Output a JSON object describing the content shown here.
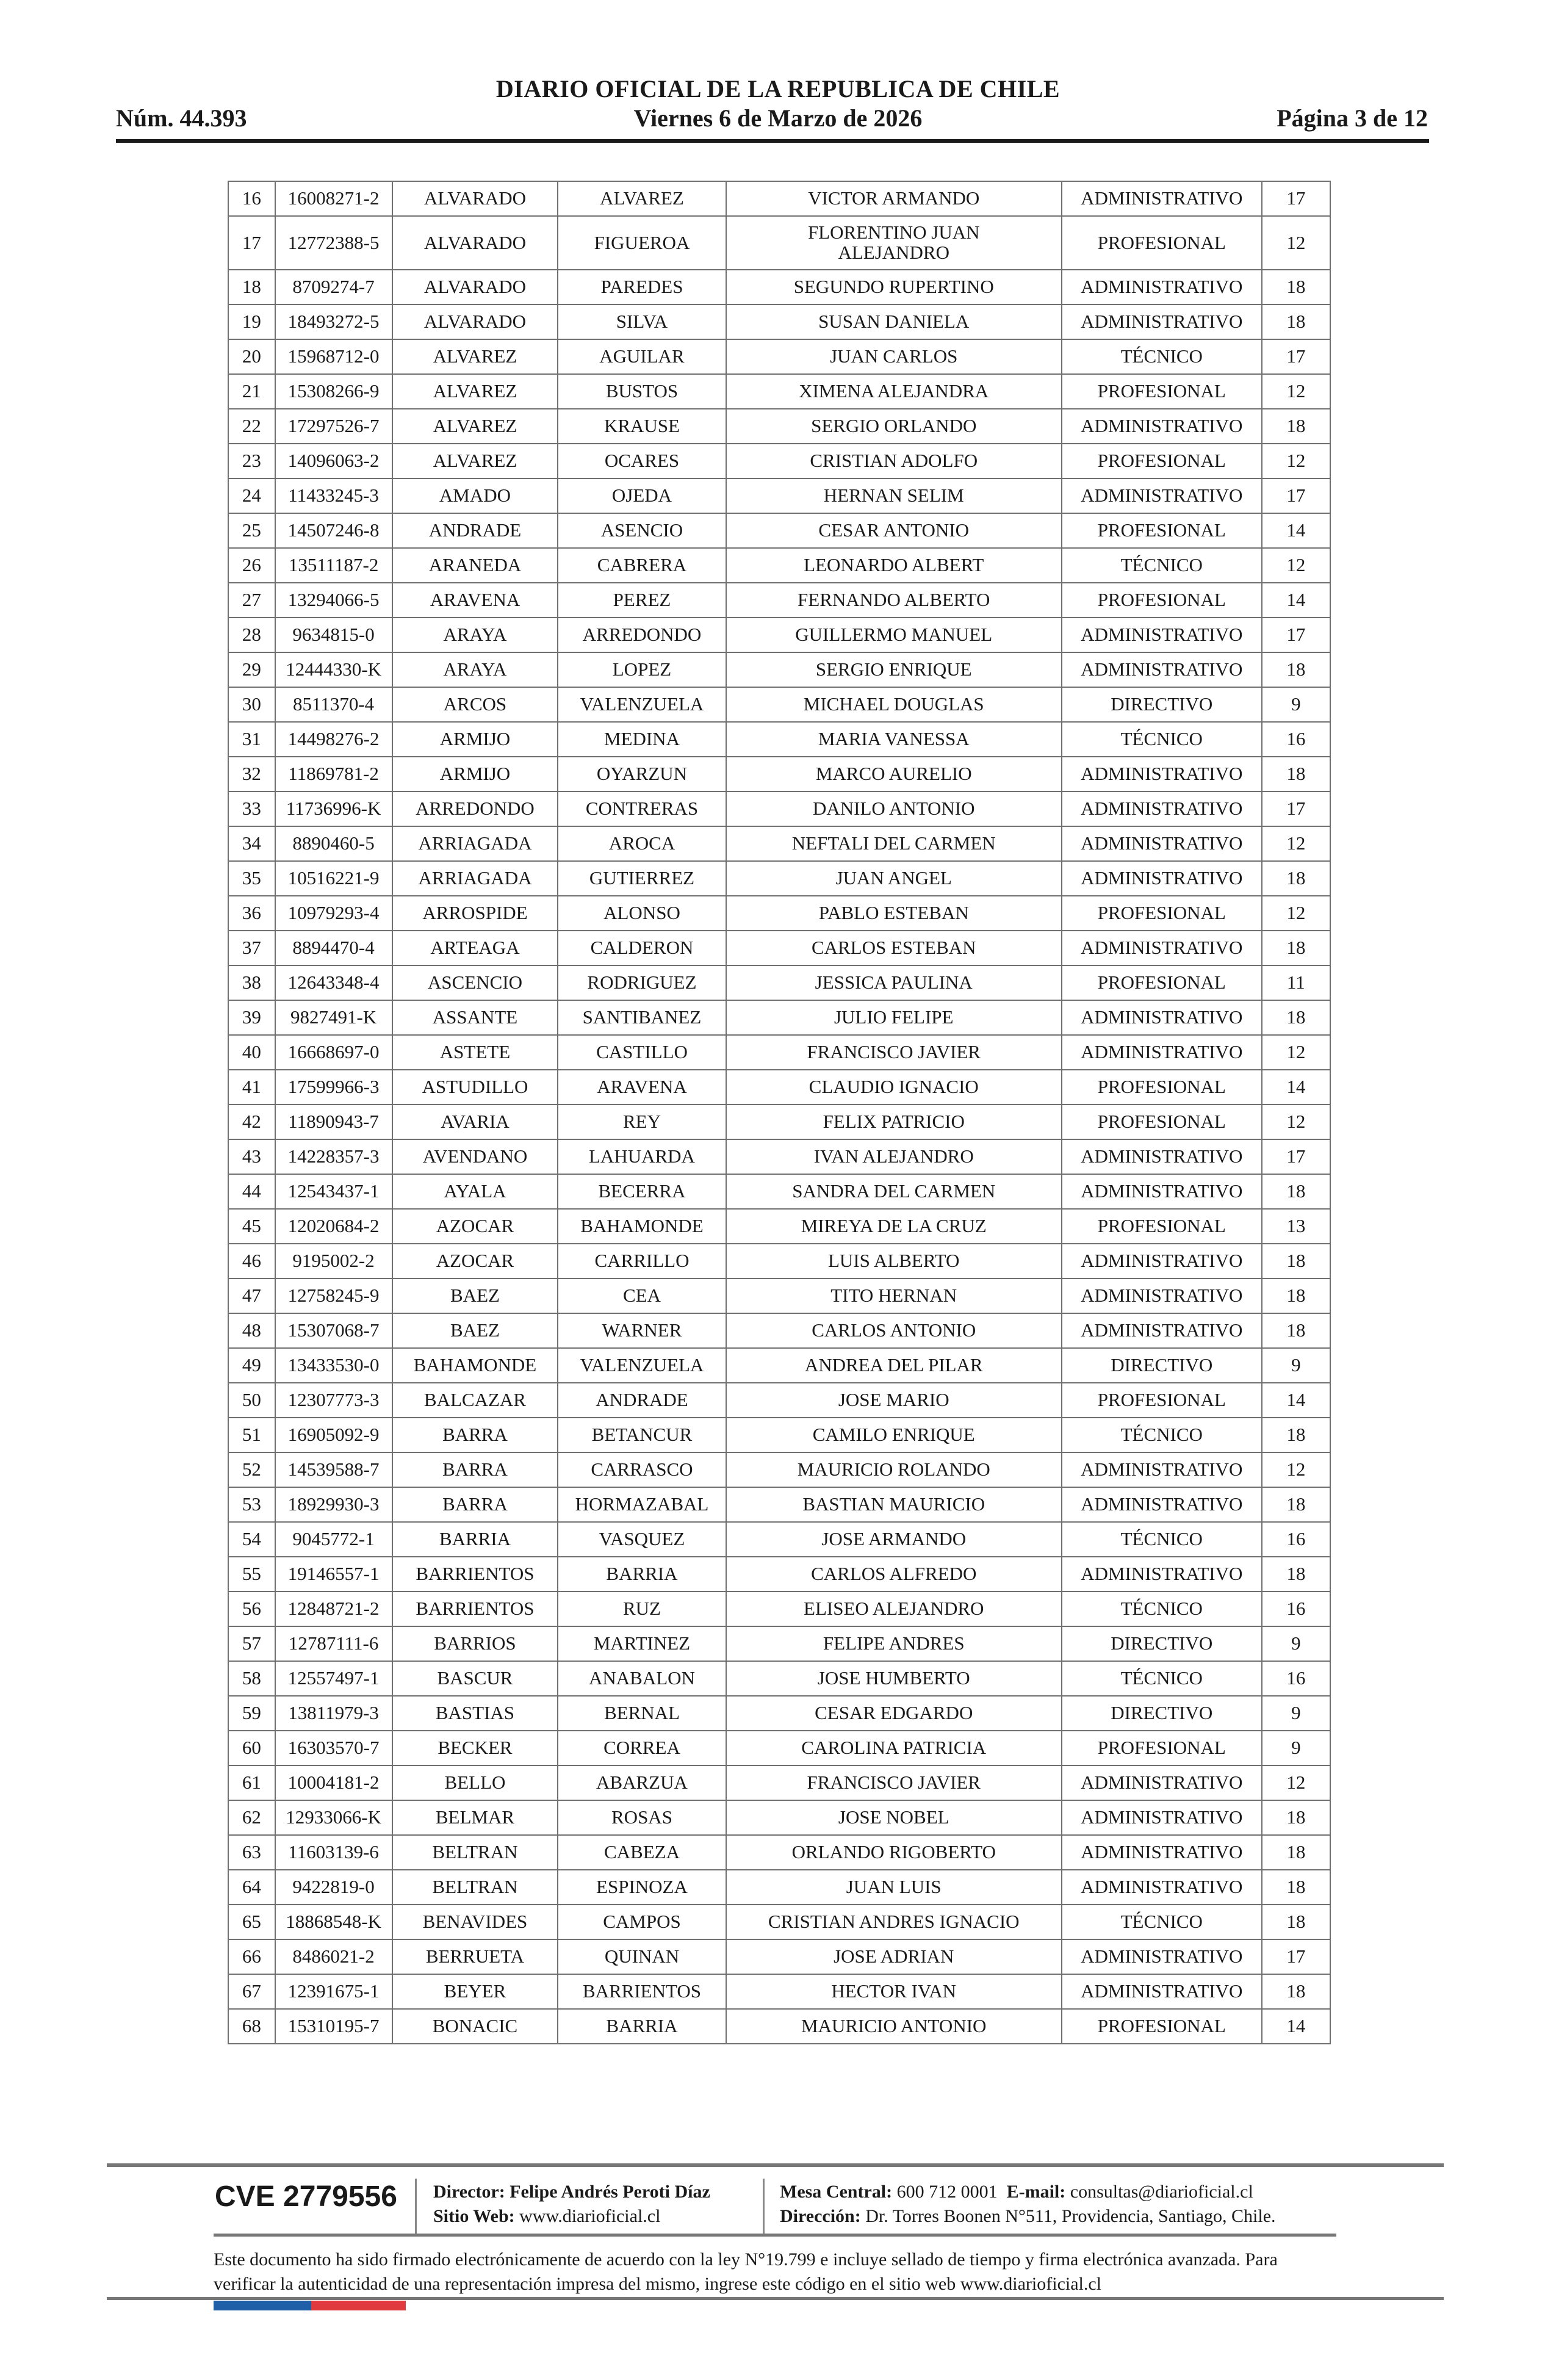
{
  "header": {
    "title": "DIARIO OFICIAL DE LA REPUBLICA DE CHILE",
    "number": "Núm. 44.393",
    "date": "Viernes 6 de Marzo de 2026",
    "page": "Página 3 de 12"
  },
  "table": {
    "rows": [
      [
        "16",
        "16008271-2",
        "ALVARADO",
        "ALVAREZ",
        "VICTOR ARMANDO",
        "ADMINISTRATIVO",
        "17"
      ],
      [
        "17",
        "12772388-5",
        "ALVARADO",
        "FIGUEROA",
        "FLORENTINO JUAN ALEJANDRO",
        "PROFESIONAL",
        "12"
      ],
      [
        "18",
        "8709274-7",
        "ALVARADO",
        "PAREDES",
        "SEGUNDO RUPERTINO",
        "ADMINISTRATIVO",
        "18"
      ],
      [
        "19",
        "18493272-5",
        "ALVARADO",
        "SILVA",
        "SUSAN DANIELA",
        "ADMINISTRATIVO",
        "18"
      ],
      [
        "20",
        "15968712-0",
        "ALVAREZ",
        "AGUILAR",
        "JUAN CARLOS",
        "TÉCNICO",
        "17"
      ],
      [
        "21",
        "15308266-9",
        "ALVAREZ",
        "BUSTOS",
        "XIMENA ALEJANDRA",
        "PROFESIONAL",
        "12"
      ],
      [
        "22",
        "17297526-7",
        "ALVAREZ",
        "KRAUSE",
        "SERGIO ORLANDO",
        "ADMINISTRATIVO",
        "18"
      ],
      [
        "23",
        "14096063-2",
        "ALVAREZ",
        "OCARES",
        "CRISTIAN ADOLFO",
        "PROFESIONAL",
        "12"
      ],
      [
        "24",
        "11433245-3",
        "AMADO",
        "OJEDA",
        "HERNAN SELIM",
        "ADMINISTRATIVO",
        "17"
      ],
      [
        "25",
        "14507246-8",
        "ANDRADE",
        "ASENCIO",
        "CESAR ANTONIO",
        "PROFESIONAL",
        "14"
      ],
      [
        "26",
        "13511187-2",
        "ARANEDA",
        "CABRERA",
        "LEONARDO ALBERT",
        "TÉCNICO",
        "12"
      ],
      [
        "27",
        "13294066-5",
        "ARAVENA",
        "PEREZ",
        "FERNANDO ALBERTO",
        "PROFESIONAL",
        "14"
      ],
      [
        "28",
        "9634815-0",
        "ARAYA",
        "ARREDONDO",
        "GUILLERMO MANUEL",
        "ADMINISTRATIVO",
        "17"
      ],
      [
        "29",
        "12444330-K",
        "ARAYA",
        "LOPEZ",
        "SERGIO ENRIQUE",
        "ADMINISTRATIVO",
        "18"
      ],
      [
        "30",
        "8511370-4",
        "ARCOS",
        "VALENZUELA",
        "MICHAEL DOUGLAS",
        "DIRECTIVO",
        "9"
      ],
      [
        "31",
        "14498276-2",
        "ARMIJO",
        "MEDINA",
        "MARIA VANESSA",
        "TÉCNICO",
        "16"
      ],
      [
        "32",
        "11869781-2",
        "ARMIJO",
        "OYARZUN",
        "MARCO AURELIO",
        "ADMINISTRATIVO",
        "18"
      ],
      [
        "33",
        "11736996-K",
        "ARREDONDO",
        "CONTRERAS",
        "DANILO ANTONIO",
        "ADMINISTRATIVO",
        "17"
      ],
      [
        "34",
        "8890460-5",
        "ARRIAGADA",
        "AROCA",
        "NEFTALI DEL CARMEN",
        "ADMINISTRATIVO",
        "12"
      ],
      [
        "35",
        "10516221-9",
        "ARRIAGADA",
        "GUTIERREZ",
        "JUAN ANGEL",
        "ADMINISTRATIVO",
        "18"
      ],
      [
        "36",
        "10979293-4",
        "ARROSPIDE",
        "ALONSO",
        "PABLO ESTEBAN",
        "PROFESIONAL",
        "12"
      ],
      [
        "37",
        "8894470-4",
        "ARTEAGA",
        "CALDERON",
        "CARLOS ESTEBAN",
        "ADMINISTRATIVO",
        "18"
      ],
      [
        "38",
        "12643348-4",
        "ASCENCIO",
        "RODRIGUEZ",
        "JESSICA PAULINA",
        "PROFESIONAL",
        "11"
      ],
      [
        "39",
        "9827491-K",
        "ASSANTE",
        "SANTIBANEZ",
        "JULIO FELIPE",
        "ADMINISTRATIVO",
        "18"
      ],
      [
        "40",
        "16668697-0",
        "ASTETE",
        "CASTILLO",
        "FRANCISCO JAVIER",
        "ADMINISTRATIVO",
        "12"
      ],
      [
        "41",
        "17599966-3",
        "ASTUDILLO",
        "ARAVENA",
        "CLAUDIO IGNACIO",
        "PROFESIONAL",
        "14"
      ],
      [
        "42",
        "11890943-7",
        "AVARIA",
        "REY",
        "FELIX PATRICIO",
        "PROFESIONAL",
        "12"
      ],
      [
        "43",
        "14228357-3",
        "AVENDANO",
        "LAHUARDA",
        "IVAN ALEJANDRO",
        "ADMINISTRATIVO",
        "17"
      ],
      [
        "44",
        "12543437-1",
        "AYALA",
        "BECERRA",
        "SANDRA DEL CARMEN",
        "ADMINISTRATIVO",
        "18"
      ],
      [
        "45",
        "12020684-2",
        "AZOCAR",
        "BAHAMONDE",
        "MIREYA DE LA CRUZ",
        "PROFESIONAL",
        "13"
      ],
      [
        "46",
        "9195002-2",
        "AZOCAR",
        "CARRILLO",
        "LUIS ALBERTO",
        "ADMINISTRATIVO",
        "18"
      ],
      [
        "47",
        "12758245-9",
        "BAEZ",
        "CEA",
        "TITO HERNAN",
        "ADMINISTRATIVO",
        "18"
      ],
      [
        "48",
        "15307068-7",
        "BAEZ",
        "WARNER",
        "CARLOS ANTONIO",
        "ADMINISTRATIVO",
        "18"
      ],
      [
        "49",
        "13433530-0",
        "BAHAMONDE",
        "VALENZUELA",
        "ANDREA DEL PILAR",
        "DIRECTIVO",
        "9"
      ],
      [
        "50",
        "12307773-3",
        "BALCAZAR",
        "ANDRADE",
        "JOSE MARIO",
        "PROFESIONAL",
        "14"
      ],
      [
        "51",
        "16905092-9",
        "BARRA",
        "BETANCUR",
        "CAMILO ENRIQUE",
        "TÉCNICO",
        "18"
      ],
      [
        "52",
        "14539588-7",
        "BARRA",
        "CARRASCO",
        "MAURICIO ROLANDO",
        "ADMINISTRATIVO",
        "12"
      ],
      [
        "53",
        "18929930-3",
        "BARRA",
        "HORMAZABAL",
        "BASTIAN MAURICIO",
        "ADMINISTRATIVO",
        "18"
      ],
      [
        "54",
        "9045772-1",
        "BARRIA",
        "VASQUEZ",
        "JOSE ARMANDO",
        "TÉCNICO",
        "16"
      ],
      [
        "55",
        "19146557-1",
        "BARRIENTOS",
        "BARRIA",
        "CARLOS ALFREDO",
        "ADMINISTRATIVO",
        "18"
      ],
      [
        "56",
        "12848721-2",
        "BARRIENTOS",
        "RUZ",
        "ELISEO ALEJANDRO",
        "TÉCNICO",
        "16"
      ],
      [
        "57",
        "12787111-6",
        "BARRIOS",
        "MARTINEZ",
        "FELIPE ANDRES",
        "DIRECTIVO",
        "9"
      ],
      [
        "58",
        "12557497-1",
        "BASCUR",
        "ANABALON",
        "JOSE HUMBERTO",
        "TÉCNICO",
        "16"
      ],
      [
        "59",
        "13811979-3",
        "BASTIAS",
        "BERNAL",
        "CESAR EDGARDO",
        "DIRECTIVO",
        "9"
      ],
      [
        "60",
        "16303570-7",
        "BECKER",
        "CORREA",
        "CAROLINA PATRICIA",
        "PROFESIONAL",
        "9"
      ],
      [
        "61",
        "10004181-2",
        "BELLO",
        "ABARZUA",
        "FRANCISCO JAVIER",
        "ADMINISTRATIVO",
        "12"
      ],
      [
        "62",
        "12933066-K",
        "BELMAR",
        "ROSAS",
        "JOSE NOBEL",
        "ADMINISTRATIVO",
        "18"
      ],
      [
        "63",
        "11603139-6",
        "BELTRAN",
        "CABEZA",
        "ORLANDO RIGOBERTO",
        "ADMINISTRATIVO",
        "18"
      ],
      [
        "64",
        "9422819-0",
        "BELTRAN",
        "ESPINOZA",
        "JUAN LUIS",
        "ADMINISTRATIVO",
        "18"
      ],
      [
        "65",
        "18868548-K",
        "BENAVIDES",
        "CAMPOS",
        "CRISTIAN ANDRES IGNACIO",
        "TÉCNICO",
        "18"
      ],
      [
        "66",
        "8486021-2",
        "BERRUETA",
        "QUINAN",
        "JOSE ADRIAN",
        "ADMINISTRATIVO",
        "17"
      ],
      [
        "67",
        "12391675-1",
        "BEYER",
        "BARRIENTOS",
        "HECTOR IVAN",
        "ADMINISTRATIVO",
        "18"
      ],
      [
        "68",
        "15310195-7",
        "BONACIC",
        "BARRIA",
        "MAURICIO ANTONIO",
        "PROFESIONAL",
        "14"
      ]
    ]
  },
  "footer": {
    "cve": "CVE 2779556",
    "director_label": "Director:",
    "director": "Felipe Andrés Peroti Díaz",
    "web_label": "Sitio Web:",
    "web": "www.diarioficial.cl",
    "phone_label": "Mesa Central:",
    "phone": "600 712 0001",
    "email_label": "E-mail:",
    "email": "consultas@diarioficial.cl",
    "address_label": "Dirección:",
    "address": "Dr. Torres Boonen N°511, Providencia, Santiago, Chile.",
    "disclaimer": "Este documento ha sido firmado electrónicamente de acuerdo con la ley N°19.799 e incluye sellado de tiempo y firma electrónica avanzada. Para verificar la autenticidad de una representación impresa del mismo, ingrese este código en el sitio web www.diarioficial.cl",
    "flag_colors": [
      "#1f5fa8",
      "#e0393e"
    ]
  }
}
